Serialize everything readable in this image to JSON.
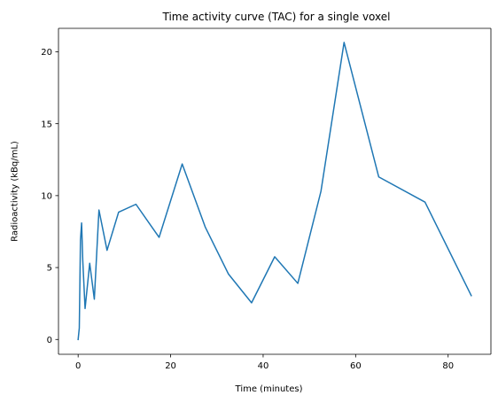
{
  "chart_data": {
    "type": "line",
    "title": "Time activity curve (TAC) for a single voxel",
    "xlabel": "Time (minutes)",
    "ylabel": "Radioactivity (kBq/mL)",
    "xlim": [
      -4.25,
      89.25
    ],
    "ylim": [
      -1.03,
      21.63
    ],
    "xticks": [
      0,
      20,
      40,
      60,
      80
    ],
    "yticks": [
      0,
      5,
      10,
      15,
      20
    ],
    "grid": false,
    "legend": "none",
    "series": [
      {
        "color": "#1f77b4",
        "x": [
          0,
          0.25,
          0.5,
          0.75,
          1.0,
          1.5,
          2.5,
          3.5,
          4.5,
          6.25,
          8.75,
          12.5,
          17.5,
          22.5,
          27.5,
          32.5,
          37.5,
          42.5,
          47.5,
          52.5,
          57.5,
          65,
          75,
          85
        ],
        "y": [
          0,
          0.8,
          6.9,
          8.1,
          5.5,
          2.15,
          5.3,
          2.8,
          9.0,
          6.2,
          8.85,
          9.4,
          7.1,
          12.2,
          7.8,
          4.55,
          2.55,
          5.75,
          3.9,
          10.3,
          20.65,
          11.3,
          9.55,
          3.05
        ]
      }
    ]
  }
}
